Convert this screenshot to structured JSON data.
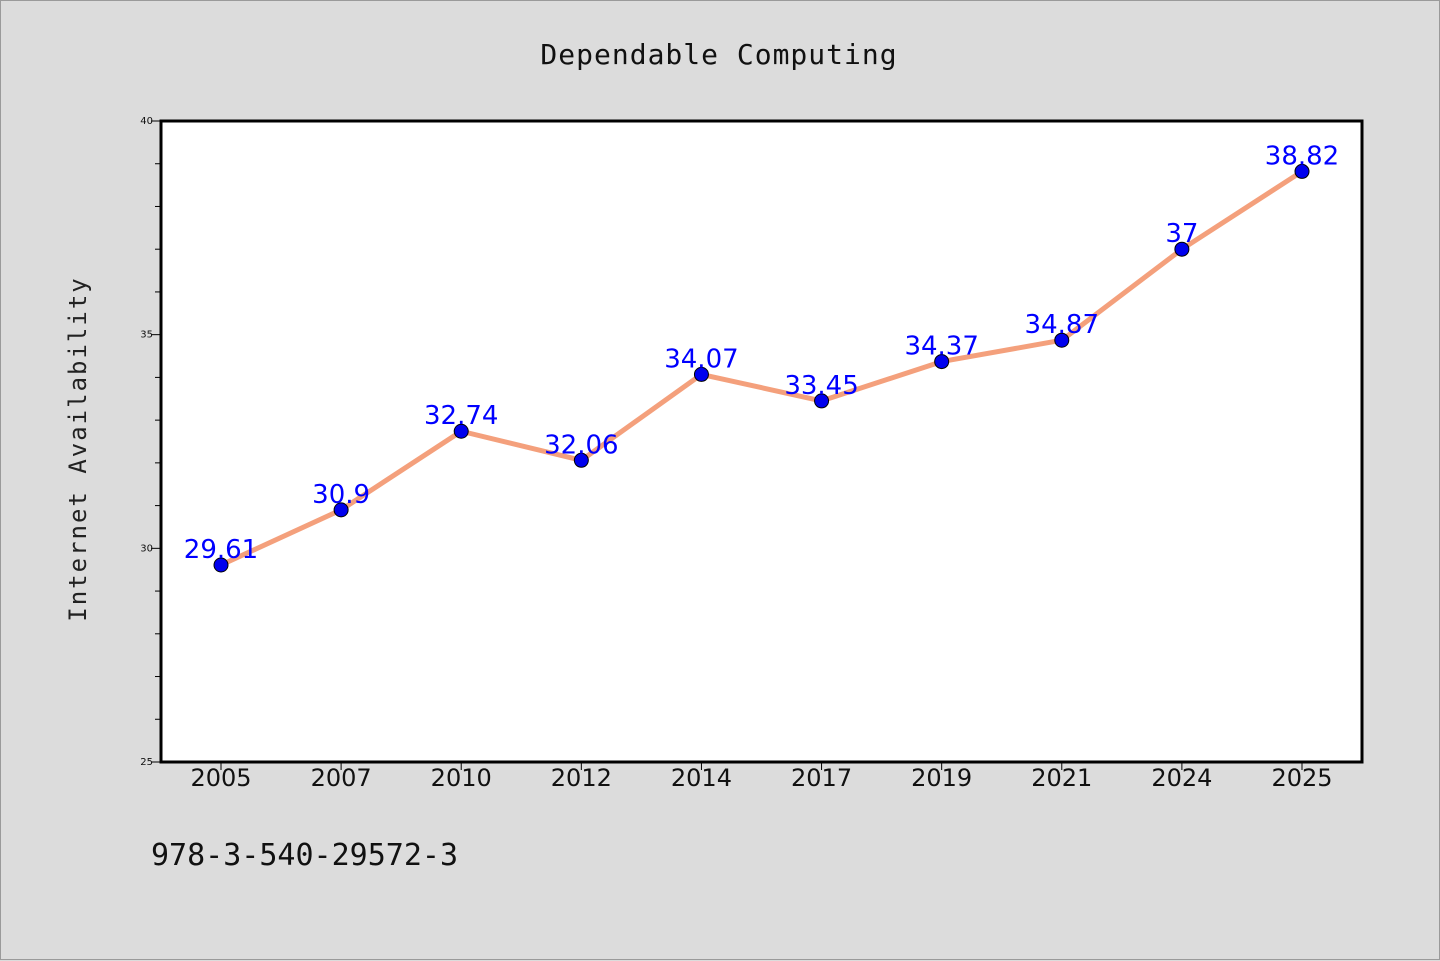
{
  "chart_data": {
    "type": "line",
    "title": "Dependable Computing",
    "xlabel": "",
    "ylabel": "Internet Availability",
    "categories": [
      "2005",
      "2007",
      "2010",
      "2012",
      "2014",
      "2017",
      "2019",
      "2021",
      "2024",
      "2025"
    ],
    "series": [
      {
        "values": [
          29.61,
          30.9,
          32.74,
          32.06,
          34.07,
          33.45,
          34.37,
          34.87,
          37,
          38.82
        ],
        "data_labels": [
          "29.61",
          "30.9",
          "32.74",
          "32.06",
          "34.07",
          "33.45",
          "34.37",
          "34.87",
          "37",
          "38.82"
        ],
        "line_color": "#f4a07c",
        "marker_color": "#0000ee"
      }
    ],
    "ylim": [
      25,
      40
    ],
    "yticks": [
      "25",
      "30",
      "35",
      "40"
    ],
    "grid": false,
    "legend": "none"
  },
  "footer": {
    "isbn": "978-3-540-29572-3"
  },
  "colors": {
    "background": "#dcdcdc",
    "plot_area": "#ffffff",
    "line": "#f4a07c",
    "marker": "#0000ee",
    "data_label": "#0000ff"
  }
}
